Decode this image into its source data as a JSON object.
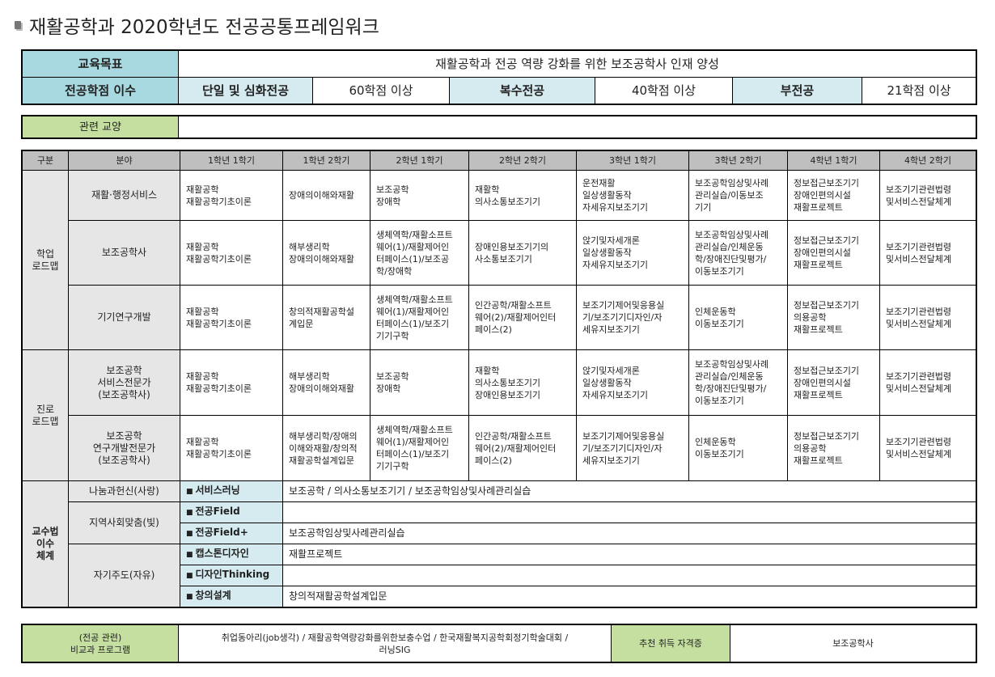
{
  "title": "재활공학과 2020학년도 전공공통프레임워크",
  "summary": {
    "goal_label": "교육목표",
    "goal_value": "재활공학과 전공 역량 강화를 위한 보조공학사 인재 양성",
    "credits_label": "전공학점 이수",
    "credits": [
      {
        "type": "단일 및 심화전공",
        "value": "60학점 이상"
      },
      {
        "type": "복수전공",
        "value": "40학점 이상"
      },
      {
        "type": "부전공",
        "value": "21학점 이상"
      }
    ],
    "liberal_label": "관련 교양",
    "liberal_value": ""
  },
  "roadmap": {
    "headers": [
      "구분",
      "분야",
      "1학년 1학기",
      "1학년 2학기",
      "2학년 1학기",
      "2학년 2학기",
      "3학년 1학기",
      "3학년 2학기",
      "4학년 1학기",
      "4학년 2학기"
    ],
    "groups": [
      {
        "label": "학업\n로드맵",
        "rows": [
          {
            "field": "재활·행정서비스",
            "cells": [
              "재활공학\n재활공학기초이론",
              "장애의이해와재활",
              "보조공학\n장애학",
              "재활학\n의사소통보조기기",
              "운전재활\n일상생활동작\n자세유지보조기기",
              "보조공학임상및사례\n관리실습/이동보조\n기기",
              "정보접근보조기기\n장애인편의시설\n재활프로젝트",
              "보조기기관련법령\n및서비스전달체계"
            ]
          },
          {
            "field": "보조공학사",
            "cells": [
              "재활공학\n재활공학기초이론",
              "해부생리학\n장애의이해와재활",
              "생체역학/재활소프트\n웨어(1)/재활제어인\n터페이스(1)/보조공\n학/장애학",
              "장애인용보조기기의\n사소통보조기기",
              "앉기및자세개론\n일상생활동작\n자세유지보조기기",
              "보조공학임상및사례\n관리실습/인체운동\n학/장애진단및평가/\n이동보조기기",
              "정보접근보조기기\n장애인편의시설\n재활프로젝트",
              "보조기기관련법령\n및서비스전달체계"
            ]
          },
          {
            "field": "기기연구개발",
            "cells": [
              "재활공학\n재활공학기초이론",
              "창의적재활공학설\n계입문",
              "생체역학/재활소프트\n웨어(1)/재활제어인\n터페이스(1)/보조기\n기기구학",
              "인간공학/재활소프트\n웨어(2)/재활제어인터\n페이스(2)",
              "보조기기제어및응용실\n기/보조기기디자인/자\n세유지보조기기",
              "인체운동학\n이동보조기기",
              "정보접근보조기기\n의용공학\n재활프로젝트",
              "보조기기관련법령\n및서비스전달체계"
            ]
          }
        ]
      },
      {
        "label": "진로\n로드맵",
        "rows": [
          {
            "field": "보조공학\n서비스전문가\n(보조공학사)",
            "cells": [
              "재활공학\n재활공학기초이론",
              "해부생리학\n장애의이해와재활",
              "보조공학\n장애학",
              "재활학\n의사소통보조기기\n장애인용보조기기",
              "앉기및자세개론\n일상생활동작\n자세유지보조기기",
              "보조공학임상및사례\n관리실습/인체운동\n학/장애진단및평가/\n이동보조기기",
              "정보접근보조기기\n장애인편의시설\n재활프로젝트",
              "보조기기관련법령\n및서비스전달체계"
            ]
          },
          {
            "field": "보조공학\n연구개발전문가\n(보조공학사)",
            "cells": [
              "재활공학\n재활공학기초이론",
              "해부생리학/장애의\n이해와재활/창의적\n재활공학설계입문",
              "생체역학/재활소프트\n웨어(1)/재활제어인\n터페이스(1)/보조기\n기기구학",
              "인간공학/재활소프트\n웨어(2)/재활제어인터\n페이스(2)",
              "보조기기제어및응용실\n기/보조기기디자인/자\n세유지보조기기",
              "인체운동학\n이동보조기기",
              "정보접근보조기기\n의용공학\n재활프로젝트",
              "보조기기관련법령\n및서비스전달체계"
            ]
          }
        ]
      }
    ],
    "pedagogy": {
      "label": "교수법\n이수\n체계",
      "categories": [
        {
          "name": "나눔과헌신(사랑)",
          "items": [
            {
              "type": "서비스러닝",
              "courses": "보조공학 / 의사소통보조기기 / 보조공학임상및사례관리실습"
            }
          ]
        },
        {
          "name": "지역사회맞춤(빛)",
          "items": [
            {
              "type": "전공Field",
              "courses": ""
            },
            {
              "type": "전공Field+",
              "courses": "보조공학임상및사례관리실습"
            }
          ]
        },
        {
          "name": "자기주도(자유)",
          "items": [
            {
              "type": "캡스톤디자인",
              "courses": "재활프로젝트"
            },
            {
              "type": "디자인Thinking",
              "courses": ""
            },
            {
              "type": "창의설계",
              "courses": "창의적재활공학설계입문"
            }
          ]
        }
      ]
    }
  },
  "extra": {
    "program_label": "(전공 관련)\n비교과 프로그램",
    "program_value": "취업동아리(job생각) / 재활공학역량강화를위한보충수업 / 한국재활복지공학회정기학술대회 /\n러닝SIG",
    "cert_label": "추천 취득 자격증",
    "cert_value": "보조공학사"
  },
  "colors": {
    "header_dark": "#a8d8e0",
    "header_light": "#d5ebf0",
    "green": "#c4dfa0",
    "grey_header": "#bfbfbf",
    "side_grey": "#e6e6e6"
  }
}
